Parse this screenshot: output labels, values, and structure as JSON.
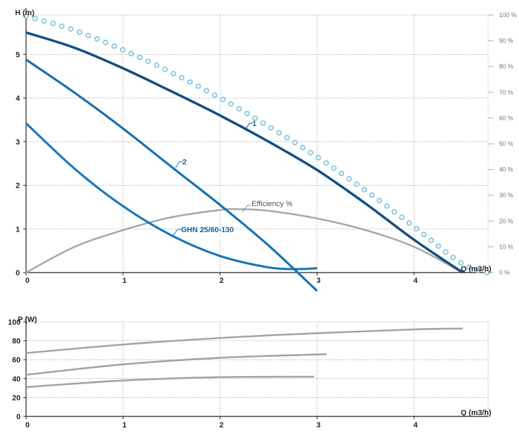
{
  "colors": {
    "curve_1": "#124e84",
    "curve_2": "#1670b4",
    "curve_3": "#1677bd",
    "efficiency": "#a8a8a8",
    "dotted": "#8fcbe3",
    "power": "#a3a3a3",
    "label_blue": "#1b5f9b"
  },
  "chart_data": [
    {
      "type": "line",
      "ylabel": "H (m)",
      "xlabel": "Q (m3/h)",
      "y2label_ticks": [
        "100 %",
        "90 %",
        "80 %",
        "70 %",
        "60 %",
        "50 %",
        "40 %",
        "30 %",
        "20 %",
        "10 %",
        "0 %"
      ],
      "xlim": [
        0,
        4.9
      ],
      "ylim": [
        0,
        5.9
      ],
      "y2lim": [
        0,
        100
      ],
      "x_ticks": [
        "0",
        "1",
        "2",
        "3",
        "4"
      ],
      "y_ticks": [
        "0",
        "1",
        "2",
        "3",
        "4",
        "5"
      ],
      "grid": true,
      "annotations": [
        "1",
        "2",
        "GHN 25/60-130",
        "Efficiency %"
      ],
      "series": [
        {
          "name": "1",
          "x": [
            0,
            0.5,
            1.0,
            1.5,
            2.0,
            2.5,
            3.0,
            3.5,
            4.0,
            4.5
          ],
          "y": [
            5.5,
            5.15,
            4.68,
            4.15,
            3.6,
            3.0,
            2.35,
            1.58,
            0.75,
            0.0
          ]
        },
        {
          "name": "2",
          "x": [
            0,
            0.5,
            1.0,
            1.5,
            2.0,
            2.5,
            3.0
          ],
          "y": [
            4.88,
            4.12,
            3.3,
            2.42,
            1.55,
            0.62,
            -0.42
          ]
        },
        {
          "name": "GHN 25/60-130",
          "x": [
            0,
            0.5,
            1.0,
            1.5,
            2.0,
            2.5,
            2.8,
            3.0
          ],
          "y": [
            3.42,
            2.38,
            1.52,
            0.85,
            0.38,
            0.12,
            0.08,
            0.1
          ]
        },
        {
          "name": "Efficiency %",
          "axis": "right",
          "x": [
            0,
            0.5,
            1.0,
            1.5,
            2.0,
            2.2,
            2.5,
            3.0,
            3.5,
            4.0,
            4.5
          ],
          "y": [
            0,
            10,
            16.5,
            21.5,
            24.3,
            24.6,
            24.0,
            21.0,
            16.5,
            10,
            0
          ]
        },
        {
          "name": "dotted",
          "style": "dotted",
          "x": [
            0,
            0.5,
            1.0,
            1.5,
            2.0,
            2.5,
            3.0,
            3.5,
            4.0,
            4.5,
            4.85
          ],
          "y": [
            5.88,
            5.55,
            5.1,
            4.58,
            4.0,
            3.35,
            2.65,
            1.88,
            1.05,
            0.2,
            -0.05
          ]
        }
      ]
    },
    {
      "type": "line",
      "ylabel": "P (W)",
      "xlabel": "Q (m3/h)",
      "xlim": [
        0,
        4.9
      ],
      "ylim": [
        0,
        100
      ],
      "x_ticks": [
        "0",
        "1",
        "2",
        "3",
        "4"
      ],
      "y_ticks": [
        "0",
        "20",
        "40",
        "60",
        "80",
        "100"
      ],
      "grid": true,
      "series": [
        {
          "x": [
            0,
            1,
            2,
            3,
            4,
            4.5
          ],
          "y": [
            67,
            76,
            83,
            88,
            92,
            93
          ]
        },
        {
          "x": [
            0,
            1,
            2,
            3,
            3.05
          ],
          "y": [
            44,
            55,
            62,
            65.5,
            65.5
          ]
        },
        {
          "x": [
            0,
            1,
            2,
            2.97
          ],
          "y": [
            31,
            38,
            41.5,
            42
          ]
        }
      ]
    }
  ]
}
